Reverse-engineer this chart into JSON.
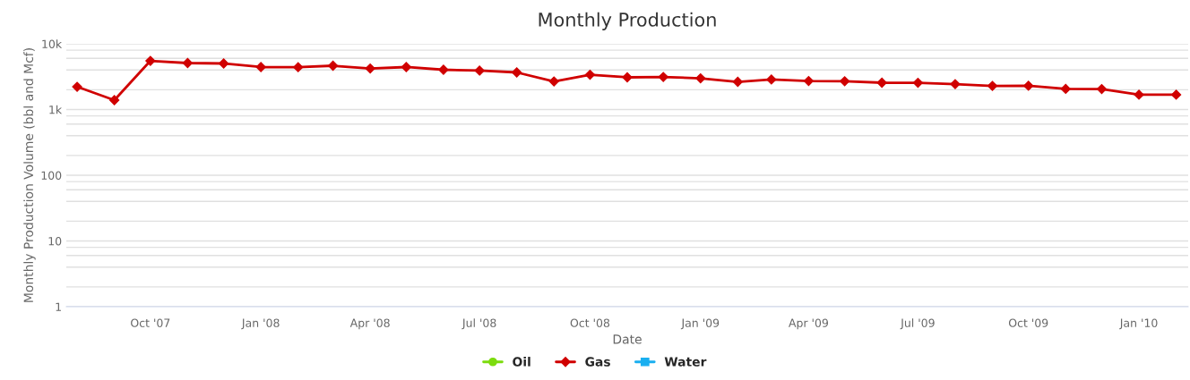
{
  "chart_data": {
    "type": "line",
    "title": "Monthly Production",
    "xlabel": "Date",
    "ylabel": "Monthly Production Volume (bbl and Mcf)",
    "x": [
      "2007-08",
      "2007-09",
      "2007-10",
      "2007-11",
      "2007-12",
      "2008-01",
      "2008-02",
      "2008-03",
      "2008-04",
      "2008-05",
      "2008-06",
      "2008-07",
      "2008-08",
      "2008-09",
      "2008-10",
      "2008-11",
      "2008-12",
      "2009-01",
      "2009-02",
      "2009-03",
      "2009-04",
      "2009-05",
      "2009-06",
      "2009-07",
      "2009-08",
      "2009-09",
      "2009-10",
      "2009-11",
      "2009-12",
      "2010-01",
      "2010-02"
    ],
    "series": [
      {
        "name": "Oil",
        "color": "#7cdc0e",
        "marker": "circle",
        "values": [
          null,
          null,
          null,
          null,
          null,
          null,
          null,
          null,
          null,
          null,
          null,
          null,
          null,
          null,
          null,
          null,
          null,
          null,
          null,
          null,
          null,
          null,
          null,
          null,
          null,
          null,
          null,
          null,
          null,
          null,
          null
        ]
      },
      {
        "name": "Gas",
        "color": "#d00000",
        "marker": "diamond",
        "values": [
          2220,
          1390,
          5510,
          5100,
          5020,
          4430,
          4400,
          4640,
          4220,
          4430,
          4030,
          3910,
          3670,
          2680,
          3390,
          3090,
          3130,
          2990,
          2640,
          2860,
          2720,
          2700,
          2560,
          2550,
          2440,
          2290,
          2300,
          2060,
          2050,
          1680,
          1680
        ]
      },
      {
        "name": "Water",
        "color": "#1aaff0",
        "marker": "square",
        "values": [
          null,
          null,
          null,
          null,
          null,
          null,
          null,
          null,
          null,
          null,
          null,
          null,
          null,
          null,
          null,
          null,
          null,
          null,
          null,
          null,
          null,
          null,
          null,
          null,
          null,
          null,
          null,
          null,
          null,
          null,
          null
        ]
      }
    ],
    "log": "y",
    "ylim": [
      1,
      10000
    ],
    "yticks": [
      1,
      {
        "value": 2,
        "label": null
      },
      {
        "value": 4,
        "label": null
      },
      {
        "value": 6,
        "label": null
      },
      {
        "value": 8,
        "label": null
      },
      10,
      {
        "value": 20,
        "label": null
      },
      {
        "value": 40,
        "label": null
      },
      {
        "value": 60,
        "label": null
      },
      {
        "value": 80,
        "label": null
      },
      100,
      {
        "value": 200,
        "label": null
      },
      {
        "value": 400,
        "label": null
      },
      {
        "value": 600,
        "label": null
      },
      {
        "value": 800,
        "label": null
      },
      {
        "value": 1000,
        "label": "1k"
      },
      {
        "value": 2000,
        "label": null
      },
      {
        "value": 4000,
        "label": null
      },
      {
        "value": 6000,
        "label": null
      },
      {
        "value": 8000,
        "label": null
      },
      {
        "value": 10000,
        "label": "10k"
      }
    ],
    "xlim": [
      "2007-07-23",
      "2010-02-11"
    ],
    "xticks": [
      {
        "value": "2007-10",
        "label": "Oct '07"
      },
      {
        "value": "2008-01",
        "label": "Jan '08"
      },
      {
        "value": "2008-04",
        "label": "Apr '08"
      },
      {
        "value": "2008-07",
        "label": "Jul '08"
      },
      {
        "value": "2008-10",
        "label": "Oct '08"
      },
      {
        "value": "2009-01",
        "label": "Jan '09"
      },
      {
        "value": "2009-04",
        "label": "Apr '09"
      },
      {
        "value": "2009-07",
        "label": "Jul '09"
      },
      {
        "value": "2009-10",
        "label": "Oct '09"
      },
      {
        "value": "2010-01",
        "label": "Jan '10"
      }
    ],
    "grid": "y",
    "legend": "bottom",
    "line_style": "solid"
  }
}
